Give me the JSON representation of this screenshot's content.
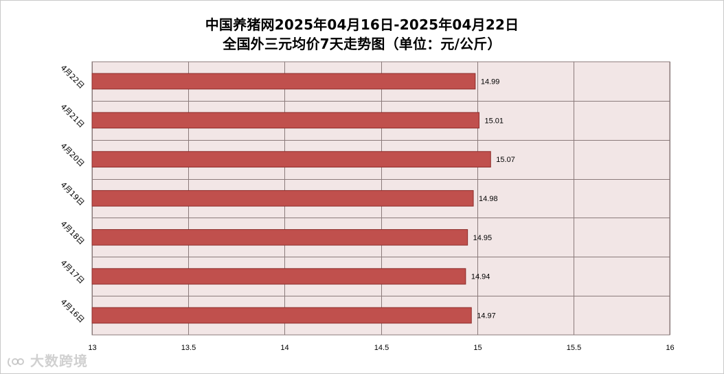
{
  "title_line1": "中国养猪网2025年04月16日-2025年04月22日",
  "title_line2": "全国外三元均价7天走势图（单位：元/公斤）",
  "watermark": "大数跨境",
  "colors": {
    "bar_fill": "#c0504d",
    "bar_stroke": "#8c2d2b",
    "plot_background": "#f2e6e6",
    "grid": "#8a7a7a"
  },
  "chart_data": {
    "type": "bar",
    "orientation": "horizontal",
    "categories": [
      "4月22日",
      "4月21日",
      "4月20日",
      "4月19日",
      "4月18日",
      "4月17日",
      "4月16日"
    ],
    "values": [
      14.99,
      15.01,
      15.07,
      14.98,
      14.95,
      14.94,
      14.97
    ],
    "data_labels": [
      "14.99",
      "15.01",
      "15.07",
      "14.98",
      "14.95",
      "14.94",
      "14.97"
    ],
    "xlim": [
      13,
      16
    ],
    "x_ticks": [
      13,
      13.5,
      14,
      14.5,
      15,
      15.5,
      16
    ],
    "x_tick_labels": [
      "13",
      "13.5",
      "14",
      "14.5",
      "15",
      "15.5",
      "16"
    ],
    "grid": true,
    "legend": "none"
  }
}
